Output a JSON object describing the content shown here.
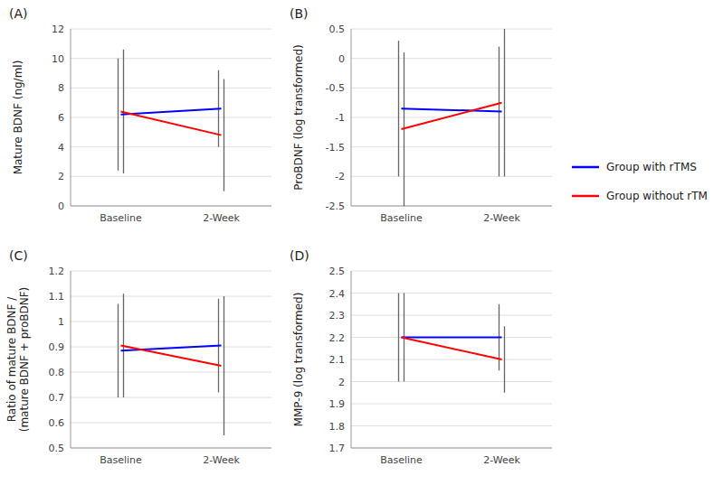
{
  "chart_data": [
    {
      "type": "line",
      "title": "(A)",
      "y_label": "Mature BDNF (ng/ml)",
      "categories": [
        "Baseline",
        "2-Week"
      ],
      "ylim": [
        0,
        12
      ],
      "yticks": [
        0,
        2,
        4,
        6,
        8,
        10,
        12
      ],
      "grid": true,
      "series": [
        {
          "color": "#0000FF",
          "values": [
            6.2,
            6.6
          ],
          "errors": [
            [
              3.8,
              3.8
            ],
            [
              2.6,
              2.6
            ]
          ]
        },
        {
          "color": "#FF0000",
          "values": [
            6.4,
            4.8
          ],
          "errors": [
            [
              4.2,
              4.2
            ],
            [
              3.8,
              3.8
            ]
          ]
        }
      ]
    },
    {
      "type": "line",
      "title": "(B)",
      "y_label": "ProBDNF (log transformed)",
      "categories": [
        "Baseline",
        "2-Week"
      ],
      "ylim": [
        -2.5,
        0.5
      ],
      "yticks": [
        -2.5,
        -2,
        -1.5,
        -1,
        -0.5,
        0,
        0.5
      ],
      "grid": true,
      "legend": "right",
      "series": [
        {
          "name": "Group with rTMS",
          "color": "#0000FF",
          "values": [
            -0.85,
            -0.9
          ],
          "errors": [
            [
              1.15,
              1.15
            ],
            [
              1.1,
              1.1
            ]
          ]
        },
        {
          "name": "Group without rTM",
          "color": "#FF0000",
          "values": [
            -1.2,
            -0.75
          ],
          "errors": [
            [
              1.3,
              1.3
            ],
            [
              1.25,
              1.25
            ]
          ]
        }
      ]
    },
    {
      "type": "line",
      "title": "(C)",
      "y_label": "Ratio of mature BDNF /\n(mature BDNF + proBDNF)",
      "categories": [
        "Baseline",
        "2-Week"
      ],
      "ylim": [
        0.5,
        1.2
      ],
      "yticks": [
        0.5,
        0.6,
        0.7,
        0.8,
        0.9,
        1,
        1.1,
        1.2
      ],
      "grid": true,
      "series": [
        {
          "color": "#0000FF",
          "values": [
            0.885,
            0.905
          ],
          "errors": [
            [
              0.185,
              0.185
            ],
            [
              0.185,
              0.185
            ]
          ]
        },
        {
          "color": "#FF0000",
          "values": [
            0.905,
            0.825
          ],
          "errors": [
            [
              0.205,
              0.205
            ],
            [
              0.275,
              0.275
            ]
          ]
        }
      ]
    },
    {
      "type": "line",
      "title": "(D)",
      "y_label": "MMP-9 (log transformed)",
      "categories": [
        "Baseline",
        "2-Week"
      ],
      "ylim": [
        1.7,
        2.5
      ],
      "yticks": [
        1.7,
        1.8,
        1.9,
        2,
        2.1,
        2.2,
        2.3,
        2.4,
        2.5
      ],
      "grid": true,
      "series": [
        {
          "color": "#0000FF",
          "values": [
            2.2,
            2.2
          ],
          "errors": [
            [
              0.2,
              0.2
            ],
            [
              0.15,
              0.15
            ]
          ]
        },
        {
          "color": "#FF0000",
          "values": [
            2.2,
            2.1
          ],
          "errors": [
            [
              0.2,
              0.2
            ],
            [
              0.15,
              0.15
            ]
          ]
        }
      ]
    }
  ]
}
